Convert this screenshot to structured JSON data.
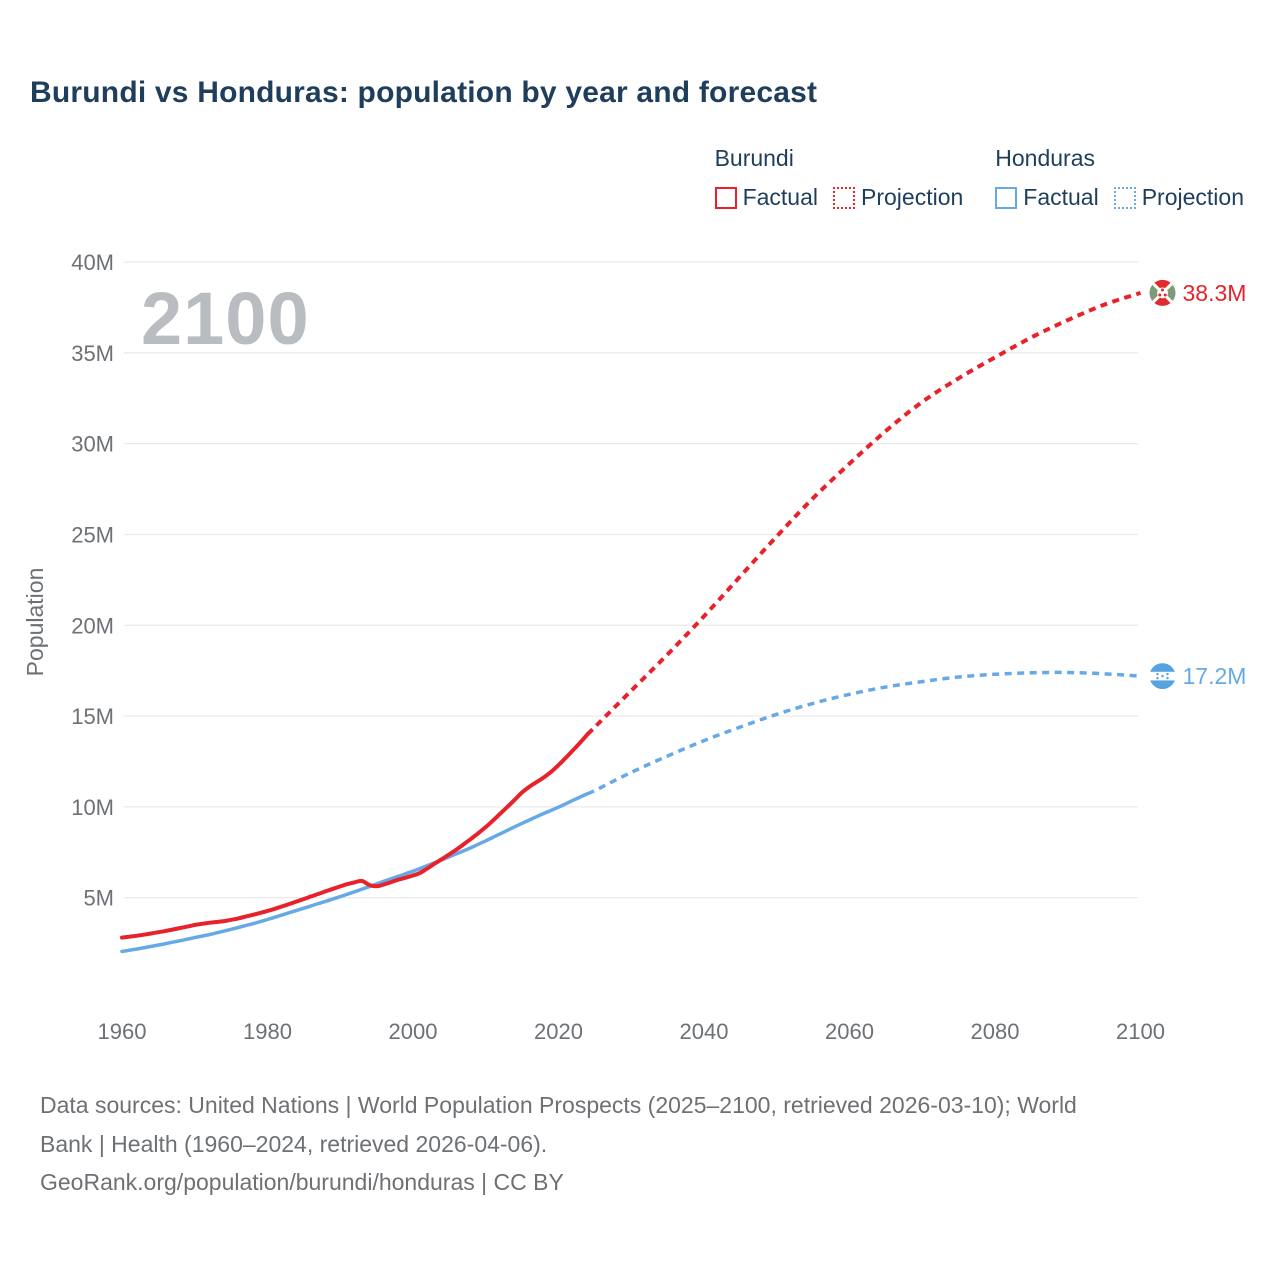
{
  "title": "Burundi vs Honduras: population by year and forecast",
  "legend": {
    "groups": [
      {
        "name": "Burundi",
        "color": "#e8222a",
        "items": [
          {
            "label": "Factual",
            "style": "solid"
          },
          {
            "label": "Projection",
            "style": "dotted"
          }
        ]
      },
      {
        "name": "Honduras",
        "color": "#66a9e4",
        "items": [
          {
            "label": "Factual",
            "style": "solid"
          },
          {
            "label": "Projection",
            "style": "dotted"
          }
        ]
      }
    ]
  },
  "footer": {
    "lines": [
      "Data sources: United Nations | World Population Prospects (2025–2100, retrieved 2026-03-10); World",
      "Bank | Health (1960–2024, retrieved 2026-04-06).",
      "GeoRank.org/population/burundi/honduras | CC BY"
    ]
  },
  "colors": {
    "burundi": "#e8222a",
    "honduras": "#66a9e4",
    "title_text": "#1f3e5c",
    "axis_text": "#6d7175",
    "gridline": "#ebebeb",
    "watermark": "#b9bdc1",
    "flag_red": "#df2a2e",
    "flag_green": "#7f9a78",
    "flag_blue": "#55a3e0"
  },
  "chart_data": {
    "type": "line",
    "title": "Burundi vs Honduras: population by year and forecast",
    "xlabel": "",
    "ylabel": "Population",
    "watermark": "2100",
    "grid": "horizontal",
    "legend_position": "top-right",
    "xlim": [
      1960,
      2113
    ],
    "ylim": [
      0,
      41.5
    ],
    "x_ticks": [
      1960,
      1980,
      2000,
      2020,
      2040,
      2060,
      2080,
      2100
    ],
    "y_ticks": [
      5,
      10,
      15,
      20,
      25,
      30,
      35,
      40
    ],
    "y_tick_labels": [
      "5M",
      "10M",
      "15M",
      "20M",
      "25M",
      "30M",
      "35M",
      "40M"
    ],
    "unit": "millions",
    "series": [
      {
        "name": "Honduras Factual",
        "color": "#66a9e4",
        "style": "solid",
        "width": 3.5,
        "points": [
          [
            1960,
            2.04
          ],
          [
            1962,
            2.17
          ],
          [
            1964,
            2.32
          ],
          [
            1966,
            2.47
          ],
          [
            1968,
            2.63
          ],
          [
            1970,
            2.8
          ],
          [
            1972,
            2.97
          ],
          [
            1974,
            3.16
          ],
          [
            1976,
            3.36
          ],
          [
            1978,
            3.57
          ],
          [
            1980,
            3.8
          ],
          [
            1982,
            4.05
          ],
          [
            1984,
            4.3
          ],
          [
            1986,
            4.55
          ],
          [
            1988,
            4.8
          ],
          [
            1990,
            5.06
          ],
          [
            1992,
            5.33
          ],
          [
            1994,
            5.61
          ],
          [
            1996,
            5.9
          ],
          [
            1998,
            6.18
          ],
          [
            2000,
            6.46
          ],
          [
            2002,
            6.77
          ],
          [
            2004,
            7.09
          ],
          [
            2006,
            7.42
          ],
          [
            2008,
            7.76
          ],
          [
            2010,
            8.13
          ],
          [
            2012,
            8.52
          ],
          [
            2014,
            8.91
          ],
          [
            2016,
            9.28
          ],
          [
            2018,
            9.64
          ],
          [
            2020,
            9.98
          ],
          [
            2022,
            10.36
          ],
          [
            2024,
            10.73
          ]
        ]
      },
      {
        "name": "Honduras Projection",
        "color": "#66a9e4",
        "style": "dotted",
        "width": 3.5,
        "points": [
          [
            2024,
            10.73
          ],
          [
            2025,
            10.9
          ],
          [
            2030,
            11.9
          ],
          [
            2035,
            12.8
          ],
          [
            2040,
            13.65
          ],
          [
            2045,
            14.4
          ],
          [
            2050,
            15.1
          ],
          [
            2055,
            15.7
          ],
          [
            2060,
            16.2
          ],
          [
            2065,
            16.6
          ],
          [
            2070,
            16.9
          ],
          [
            2075,
            17.15
          ],
          [
            2080,
            17.3
          ],
          [
            2085,
            17.38
          ],
          [
            2090,
            17.4
          ],
          [
            2095,
            17.33
          ],
          [
            2100,
            17.2
          ]
        ]
      },
      {
        "name": "Burundi Factual",
        "color": "#e8222a",
        "style": "solid",
        "width": 4,
        "points": [
          [
            1960,
            2.8
          ],
          [
            1961,
            2.85
          ],
          [
            1962,
            2.9
          ],
          [
            1963,
            2.96
          ],
          [
            1964,
            3.03
          ],
          [
            1965,
            3.1
          ],
          [
            1966,
            3.17
          ],
          [
            1967,
            3.25
          ],
          [
            1968,
            3.33
          ],
          [
            1969,
            3.41
          ],
          [
            1970,
            3.5
          ],
          [
            1971,
            3.56
          ],
          [
            1972,
            3.62
          ],
          [
            1973,
            3.66
          ],
          [
            1974,
            3.71
          ],
          [
            1975,
            3.78
          ],
          [
            1976,
            3.86
          ],
          [
            1977,
            3.96
          ],
          [
            1978,
            4.06
          ],
          [
            1979,
            4.16
          ],
          [
            1980,
            4.27
          ],
          [
            1981,
            4.39
          ],
          [
            1982,
            4.52
          ],
          [
            1983,
            4.65
          ],
          [
            1984,
            4.79
          ],
          [
            1985,
            4.93
          ],
          [
            1986,
            5.07
          ],
          [
            1987,
            5.21
          ],
          [
            1988,
            5.35
          ],
          [
            1989,
            5.49
          ],
          [
            1990,
            5.62
          ],
          [
            1991,
            5.75
          ],
          [
            1992,
            5.85
          ],
          [
            1993,
            5.92
          ],
          [
            1994,
            5.7
          ],
          [
            1995,
            5.63
          ],
          [
            1996,
            5.73
          ],
          [
            1997,
            5.86
          ],
          [
            1998,
            5.99
          ],
          [
            1999,
            6.1
          ],
          [
            2000,
            6.22
          ],
          [
            2001,
            6.37
          ],
          [
            2002,
            6.62
          ],
          [
            2003,
            6.88
          ],
          [
            2004,
            7.13
          ],
          [
            2005,
            7.39
          ],
          [
            2006,
            7.66
          ],
          [
            2007,
            7.95
          ],
          [
            2008,
            8.25
          ],
          [
            2009,
            8.56
          ],
          [
            2010,
            8.89
          ],
          [
            2011,
            9.25
          ],
          [
            2012,
            9.63
          ],
          [
            2013,
            10.01
          ],
          [
            2014,
            10.4
          ],
          [
            2015,
            10.8
          ],
          [
            2016,
            11.11
          ],
          [
            2017,
            11.37
          ],
          [
            2018,
            11.63
          ],
          [
            2019,
            11.93
          ],
          [
            2020,
            12.3
          ],
          [
            2021,
            12.7
          ],
          [
            2022,
            13.12
          ],
          [
            2023,
            13.55
          ],
          [
            2024,
            14.0
          ]
        ]
      },
      {
        "name": "Burundi Projection",
        "color": "#e8222a",
        "style": "dotted",
        "width": 4,
        "points": [
          [
            2024,
            14.0
          ],
          [
            2025,
            14.4
          ],
          [
            2030,
            16.4
          ],
          [
            2035,
            18.4
          ],
          [
            2040,
            20.5
          ],
          [
            2045,
            22.7
          ],
          [
            2050,
            24.9
          ],
          [
            2055,
            27.0
          ],
          [
            2060,
            28.9
          ],
          [
            2065,
            30.7
          ],
          [
            2070,
            32.3
          ],
          [
            2075,
            33.6
          ],
          [
            2080,
            34.75
          ],
          [
            2085,
            35.85
          ],
          [
            2090,
            36.8
          ],
          [
            2095,
            37.65
          ],
          [
            2100,
            38.3
          ]
        ]
      }
    ],
    "end_markers": [
      {
        "flag": "burundi",
        "series": "Burundi",
        "year": 2100,
        "value": 38.3,
        "label": "38.3M",
        "color": "#e8222a"
      },
      {
        "flag": "honduras",
        "series": "Honduras",
        "year": 2100,
        "value": 17.2,
        "label": "17.2M",
        "color": "#66a9e4"
      }
    ]
  }
}
